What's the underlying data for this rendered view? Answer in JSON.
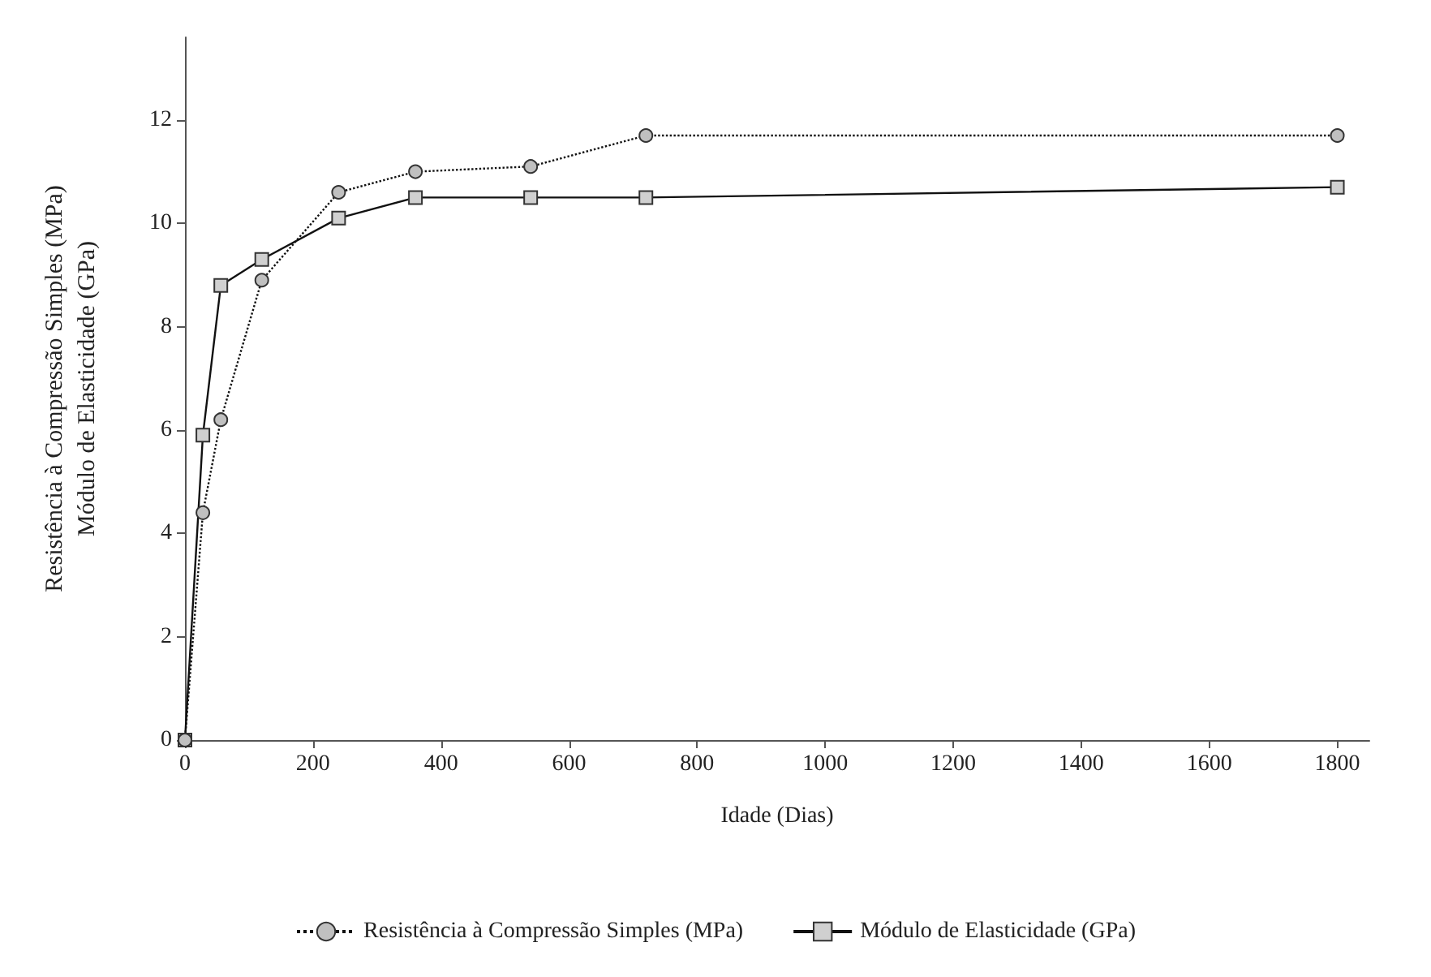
{
  "chart_data": {
    "type": "line",
    "xlabel": "Idade (Dias)",
    "ylabel": "Resistência à Compressão Simples (MPa)\nMódulo de Elasticidade (GPa)",
    "xlim": [
      0,
      1850
    ],
    "xticks": [
      0,
      200,
      400,
      600,
      800,
      1000,
      1200,
      1400,
      1600,
      1800
    ],
    "ylim": [
      0,
      13.6
    ],
    "yticks": [
      0,
      2,
      4,
      6,
      8,
      10,
      12
    ],
    "grid": false,
    "legend": "bottom",
    "series": [
      {
        "name": "Resistência à Compressão Simples (MPa)",
        "color": "#c0c0c0",
        "marker": "circle",
        "line_style": "dotted",
        "x": [
          0,
          28,
          56,
          120,
          240,
          360,
          540,
          720,
          1800
        ],
        "values": [
          0,
          4.4,
          6.2,
          8.9,
          10.6,
          11.0,
          11.1,
          11.7,
          11.7
        ]
      },
      {
        "name": "Módulo de Elasticidade (GPa)",
        "color": "#d0d0d0",
        "marker": "square",
        "line_style": "solid",
        "x": [
          0,
          28,
          56,
          120,
          240,
          360,
          540,
          720,
          1800
        ],
        "values": [
          0,
          5.9,
          8.8,
          9.3,
          10.1,
          10.5,
          10.5,
          10.5,
          10.7
        ]
      }
    ]
  }
}
